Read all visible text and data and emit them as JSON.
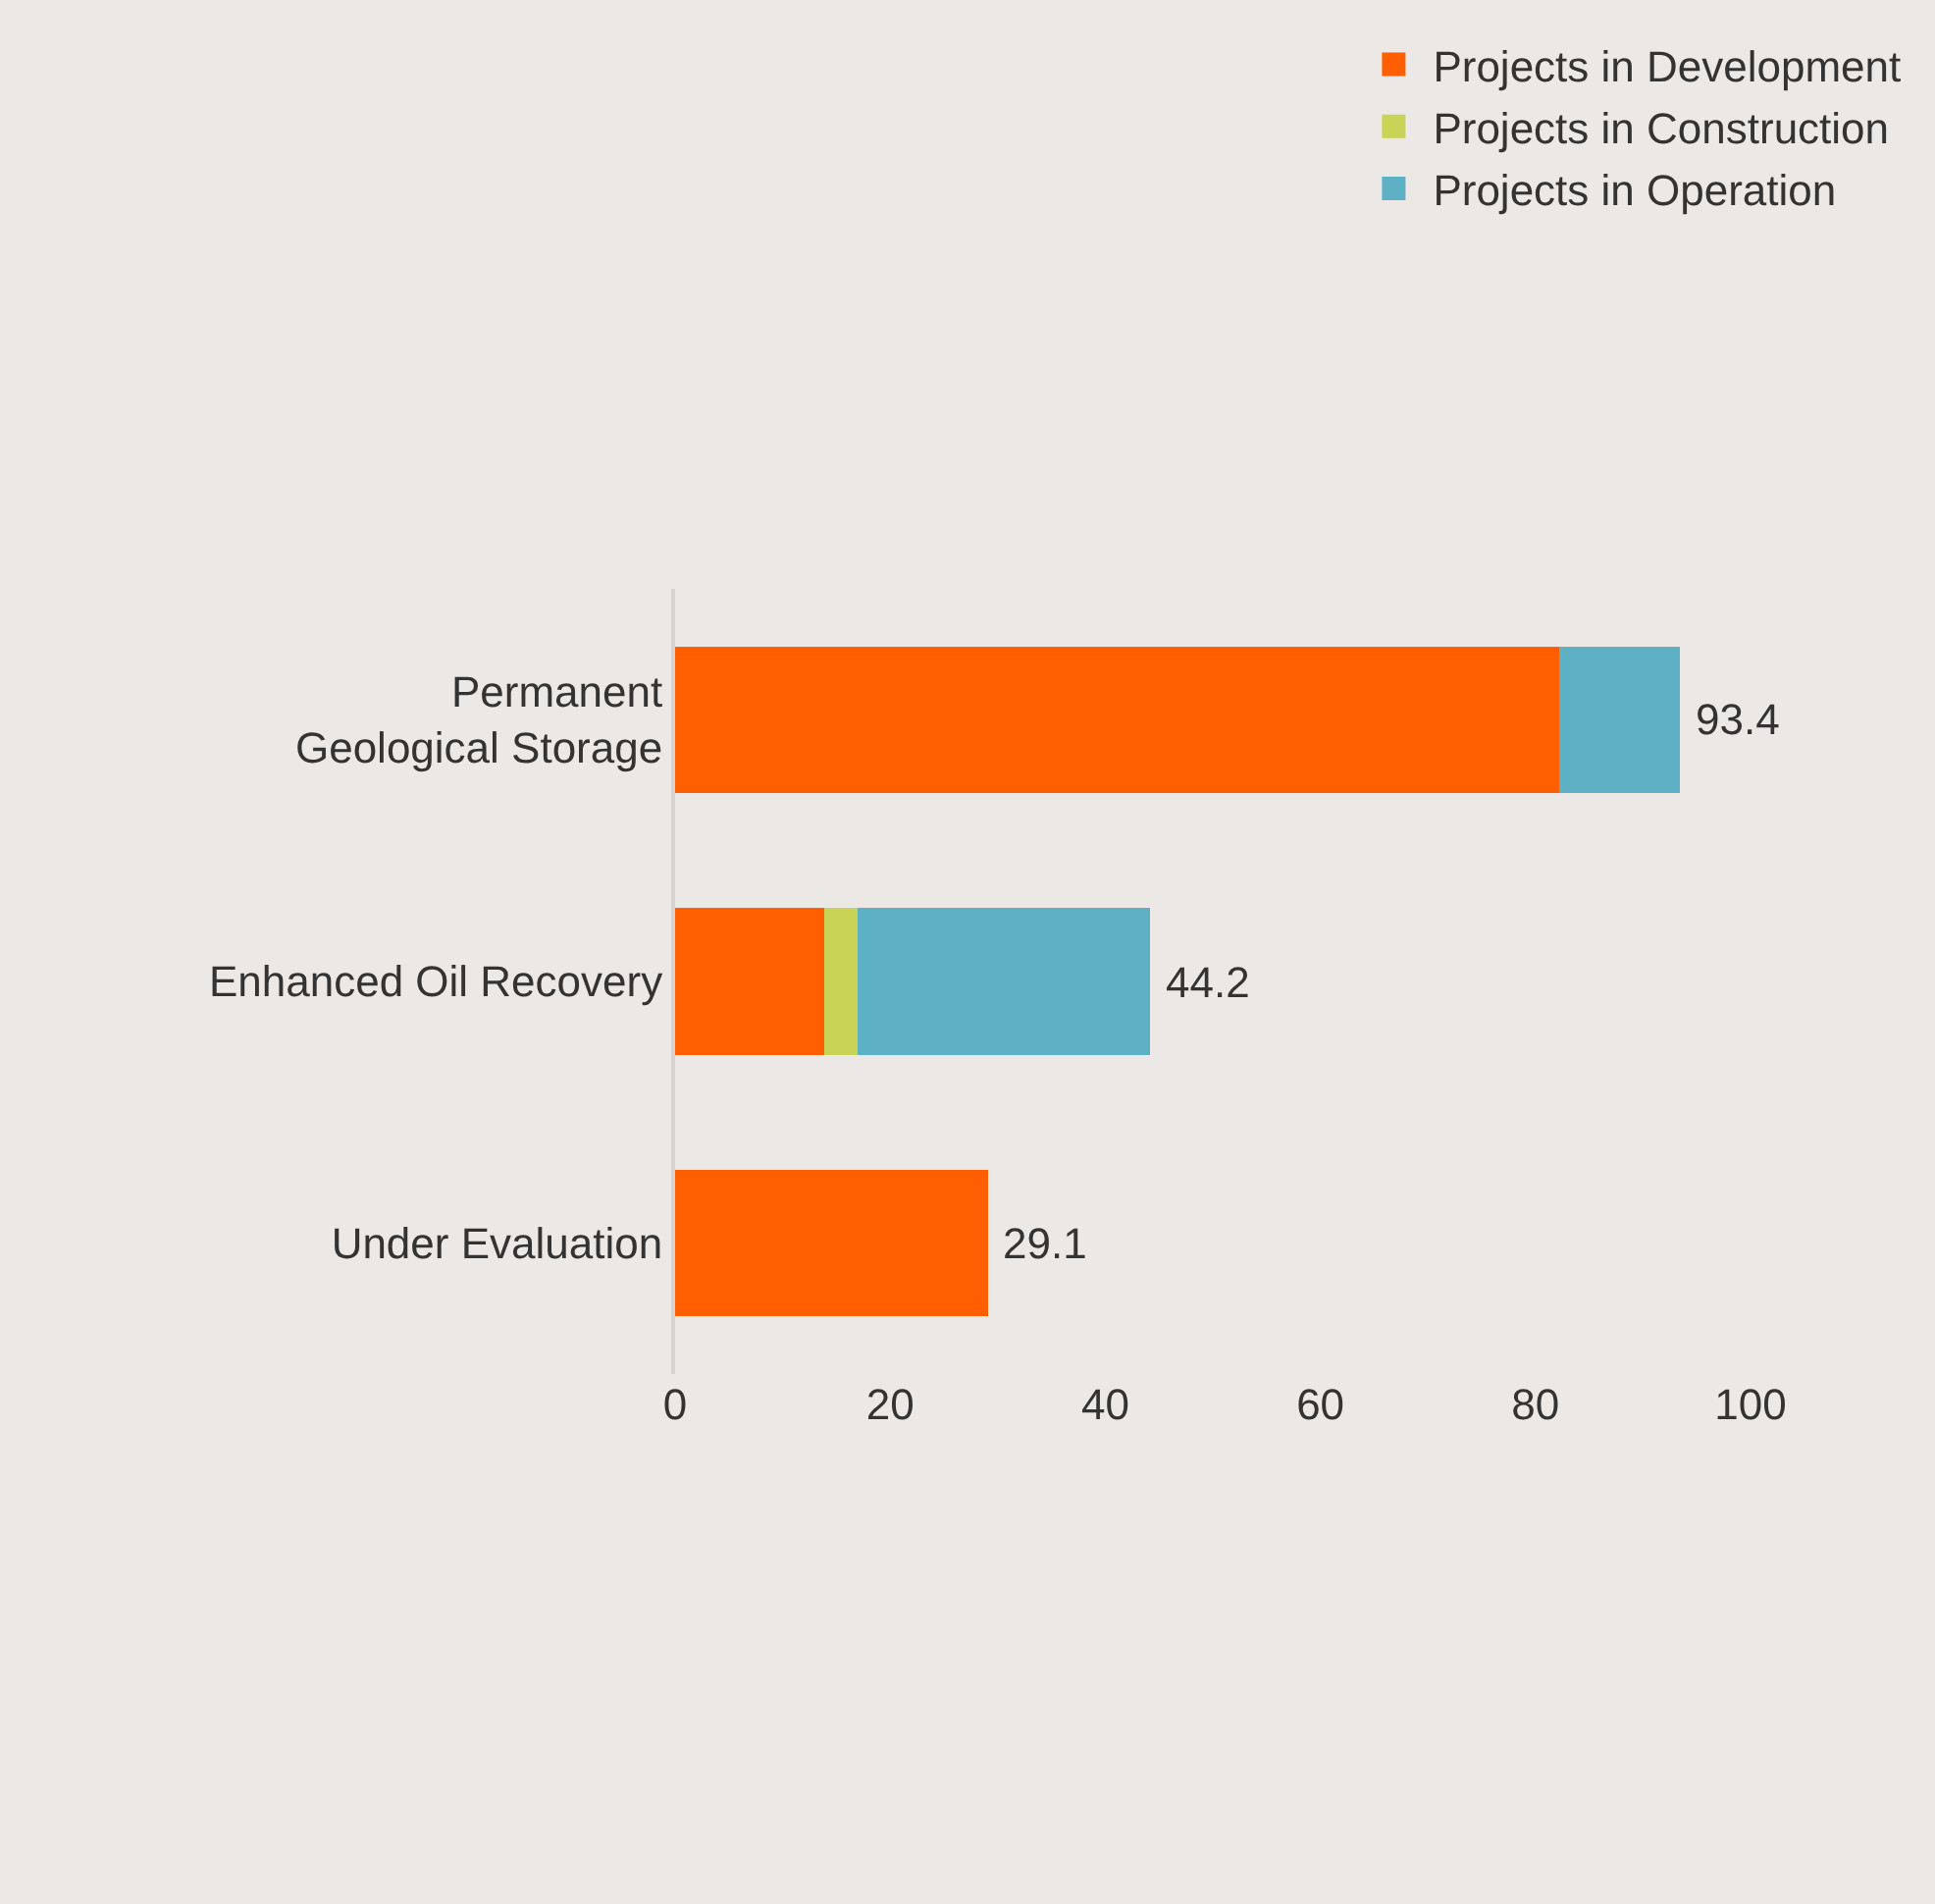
{
  "chart_data": {
    "type": "bar",
    "orientation": "horizontal",
    "stacked": true,
    "categories": [
      "Permanent\nGeological Storage",
      "Enhanced Oil Recovery",
      "Under Evaluation"
    ],
    "series": [
      {
        "name": "Projects in Development",
        "color": "#ff5f00",
        "values": [
          82.2,
          13.9,
          29.1
        ]
      },
      {
        "name": "Projects in Construction",
        "color": "#c9d457",
        "values": [
          0,
          3.1,
          0
        ]
      },
      {
        "name": "Projects in Operation",
        "color": "#5eb0c4",
        "values": [
          11.2,
          27.2,
          0
        ]
      }
    ],
    "totals": [
      "93.4",
      "44.2",
      "29.1"
    ],
    "xlim": [
      0,
      100
    ],
    "xticks": [
      0,
      20,
      40,
      60,
      80,
      100
    ],
    "grid": false,
    "legend": "top right"
  }
}
